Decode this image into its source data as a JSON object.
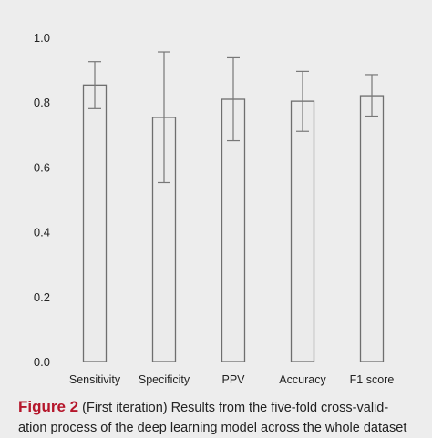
{
  "chart_data": {
    "type": "bar",
    "categories": [
      "Sensitivity",
      "Specificity",
      "PPV",
      "Accuracy",
      "F1 score"
    ],
    "values": [
      0.853,
      0.753,
      0.809,
      0.803,
      0.82
    ],
    "error_upper": [
      0.925,
      0.955,
      0.937,
      0.895,
      0.885
    ],
    "error_lower": [
      0.78,
      0.552,
      0.681,
      0.71,
      0.757
    ],
    "yticks": [
      "0.0",
      "0.2",
      "0.4",
      "0.6",
      "0.8",
      "1.0"
    ],
    "ylim": [
      0,
      1.0
    ],
    "grid": false,
    "colors": {
      "bar_fill": "#ebebeb",
      "bar_stroke": "#6e6e6e",
      "axis": "#8a8a8a",
      "error_bar": "#777777"
    }
  },
  "caption": {
    "label": "Figure 2",
    "line1": "(First iteration) Results from the five-fold cross-valid-",
    "line2": "ation process of the deep learning model across the whole dataset"
  }
}
